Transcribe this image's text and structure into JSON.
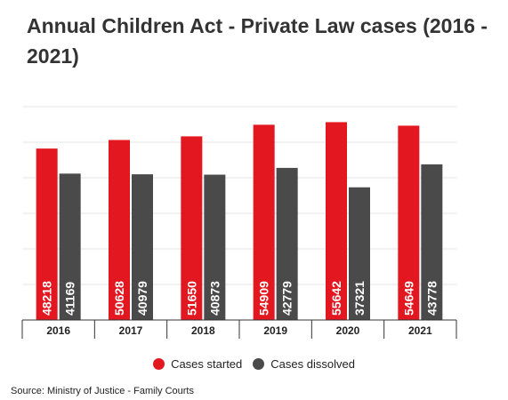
{
  "title": "Annual Children Act - Private Law cases (2016 - 2021)",
  "source": "Source: Ministry of Justice - Family Courts",
  "colors": {
    "started": "#e3171f",
    "dissolved": "#4a4a4a",
    "grid": "#e6e6e6",
    "axis": "#333333"
  },
  "chart_data": {
    "type": "bar",
    "categories": [
      "2016",
      "2017",
      "2018",
      "2019",
      "2020",
      "2021"
    ],
    "series": [
      {
        "name": "Cases started",
        "values": [
          48218,
          50628,
          51650,
          54909,
          55642,
          54649
        ]
      },
      {
        "name": "Cases dissolved",
        "values": [
          41169,
          40979,
          40873,
          42779,
          37321,
          43778
        ]
      }
    ],
    "ylim": [
      0,
      60000
    ],
    "grid": true,
    "legend": "bottom",
    "data_labels": "inside-bottom-rotated"
  }
}
